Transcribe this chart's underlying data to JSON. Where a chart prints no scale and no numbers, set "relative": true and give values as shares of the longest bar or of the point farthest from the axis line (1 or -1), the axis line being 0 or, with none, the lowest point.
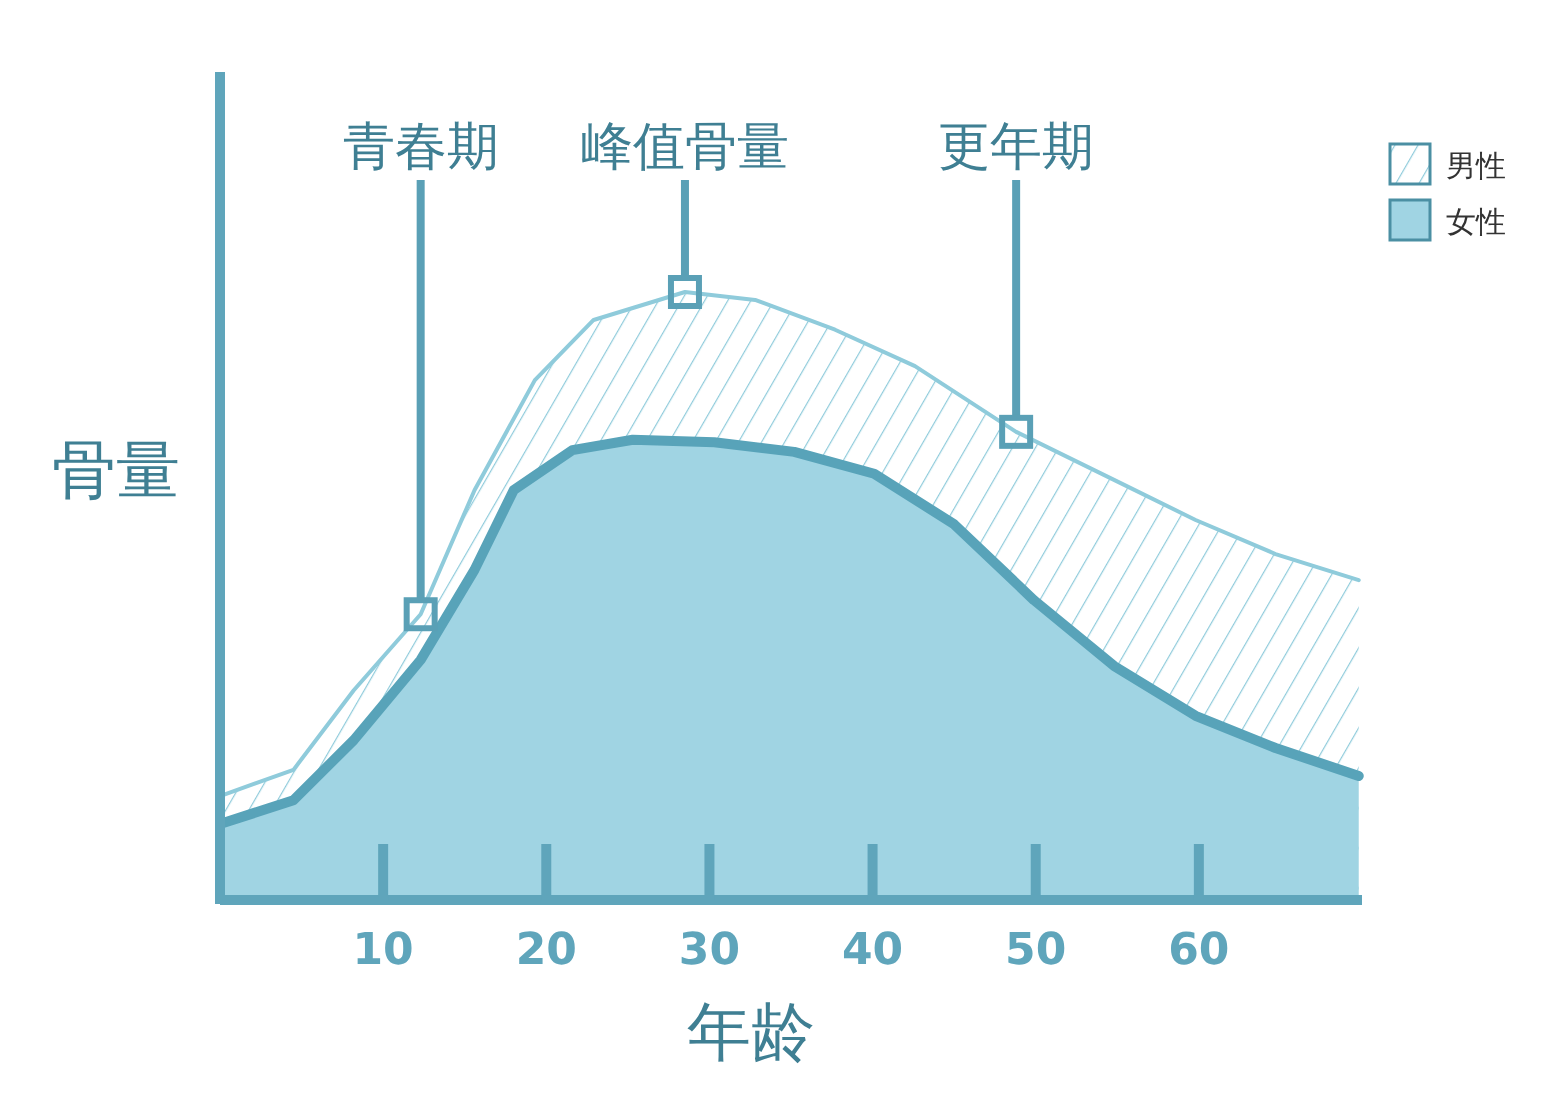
{
  "chart_data": {
    "type": "area",
    "relative": true,
    "xlabel": "年龄",
    "ylabel": "骨量",
    "xlim": [
      0,
      70
    ],
    "xticks": [
      10,
      20,
      30,
      40,
      50,
      60
    ],
    "legend": "top right",
    "grid": false,
    "series": [
      {
        "name": "男性",
        "color": "#8fcbdb",
        "x": [
          0,
          4.5,
          8.2,
          12.3,
          15.6,
          19.3,
          22.9,
          28.5,
          32.8,
          37.7,
          42.6,
          48.8,
          54.8,
          59.8,
          64.7,
          69.8
        ],
        "values": [
          0.171,
          0.214,
          0.345,
          0.47,
          0.674,
          0.855,
          0.954,
          1.0,
          0.987,
          0.938,
          0.878,
          0.77,
          0.691,
          0.625,
          0.569,
          0.526
        ]
      },
      {
        "name": "女性",
        "color": "#a0d4e3",
        "x": [
          0,
          4.5,
          8.2,
          12.3,
          15.6,
          18.0,
          21.6,
          25.3,
          30.3,
          35.2,
          40.1,
          45.0,
          49.9,
          54.8,
          59.8,
          64.7,
          69.8
        ],
        "values": [
          0.125,
          0.164,
          0.263,
          0.395,
          0.543,
          0.674,
          0.74,
          0.757,
          0.753,
          0.737,
          0.701,
          0.618,
          0.493,
          0.385,
          0.303,
          0.25,
          0.204
        ]
      }
    ],
    "annotations": [
      {
        "text": "青春期",
        "x": 12.3,
        "y": 0.47
      },
      {
        "text": "峰值骨量",
        "x": 28.5,
        "y": 1.0
      },
      {
        "text": "更年期",
        "x": 48.8,
        "y": 0.77
      }
    ]
  }
}
